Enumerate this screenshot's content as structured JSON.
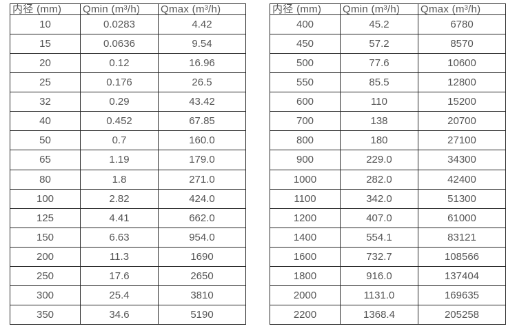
{
  "colors": {
    "background": "#ffffff",
    "border": "#262626",
    "text": "#555555"
  },
  "tables": [
    {
      "id": "small-diameter-table",
      "headers": [
        "内径 (mm)",
        "Qmin (m³/h)",
        "Qmax (m³/h)"
      ],
      "rows": [
        [
          "10",
          "0.0283",
          "4.42"
        ],
        [
          "15",
          "0.0636",
          "9.54"
        ],
        [
          "20",
          "0.12",
          "16.96"
        ],
        [
          "25",
          "0.176",
          "26.5"
        ],
        [
          "32",
          "0.29",
          "43.42"
        ],
        [
          "40",
          "0.452",
          "67.85"
        ],
        [
          "50",
          "0.7",
          "160.0"
        ],
        [
          "65",
          "1.19",
          "179.0"
        ],
        [
          "80",
          "1.8",
          "271.0"
        ],
        [
          "100",
          "2.82",
          "424.0"
        ],
        [
          "125",
          "4.41",
          "662.0"
        ],
        [
          "150",
          "6.63",
          "954.0"
        ],
        [
          "200",
          "11.3",
          "1690"
        ],
        [
          "250",
          "17.6",
          "2650"
        ],
        [
          "300",
          "25.4",
          "3810"
        ],
        [
          "350",
          "34.6",
          "5190"
        ]
      ]
    },
    {
      "id": "large-diameter-table",
      "headers": [
        "内径 (mm)",
        "Qmin (m³/h)",
        "Qmax (m³/h)"
      ],
      "rows": [
        [
          "400",
          "45.2",
          "6780"
        ],
        [
          "450",
          "57.2",
          "8570"
        ],
        [
          "500",
          "77.6",
          "10600"
        ],
        [
          "550",
          "85.5",
          "12800"
        ],
        [
          "600",
          "110",
          "15200"
        ],
        [
          "700",
          "138",
          "20700"
        ],
        [
          "800",
          "180",
          "27100"
        ],
        [
          "900",
          "229.0",
          "34300"
        ],
        [
          "1000",
          "282.0",
          "42400"
        ],
        [
          "1100",
          "342.0",
          "51300"
        ],
        [
          "1200",
          "407.0",
          "61000"
        ],
        [
          "1400",
          "554.1",
          "83121"
        ],
        [
          "1600",
          "732.7",
          "108566"
        ],
        [
          "1800",
          "916.0",
          "137404"
        ],
        [
          "2000",
          "1131.0",
          "169635"
        ],
        [
          "2200",
          "1368.4",
          "205258"
        ]
      ]
    }
  ]
}
